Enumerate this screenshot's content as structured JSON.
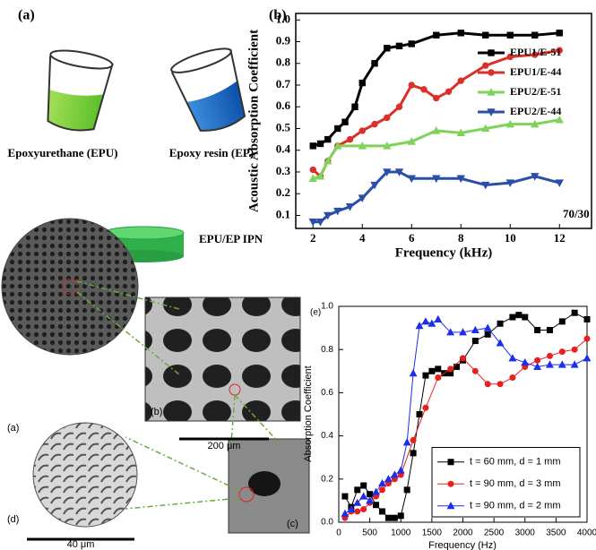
{
  "diagram": {
    "panel_label": "(a)",
    "epu_label": "Epoxyurethane (EPU)",
    "ep_label": "Epoxy resin (EP)",
    "ipn_label": "EPU/EP IPN",
    "sem": {
      "label_a": "(a)",
      "label_b": "(b)",
      "label_c": "(c)",
      "label_d": "(d)",
      "scale_200": "200 μm",
      "scale_40": "40 μm"
    }
  },
  "chart_data": [
    {
      "type": "line",
      "title": "(b)",
      "xlabel": "Frequency (kHz)",
      "ylabel": "Acoustic Absorption Coefficient",
      "annotation": "70/30",
      "xlim": [
        1.3,
        13.3
      ],
      "ylim": [
        0.04,
        1.03
      ],
      "xticks": [
        2,
        4,
        6,
        8,
        10,
        12
      ],
      "yticks": [
        0.1,
        0.2,
        0.3,
        0.4,
        0.5,
        0.6,
        0.7,
        0.8,
        0.9,
        {
          "value": 1,
          "label": "1.0"
        }
      ],
      "legend": "upper right",
      "legend_frame": false,
      "series": [
        {
          "name": "EPU1/E-51",
          "color": "#000000",
          "marker": "square",
          "x": [
            2.0,
            2.3,
            2.6,
            3.0,
            3.3,
            3.7,
            4.0,
            4.5,
            5.0,
            5.5,
            6.0,
            7.0,
            8.0,
            9.0,
            10.0,
            11.0,
            12.0
          ],
          "values": [
            0.42,
            0.43,
            0.45,
            0.5,
            0.53,
            0.6,
            0.71,
            0.8,
            0.87,
            0.88,
            0.89,
            0.93,
            0.94,
            0.93,
            0.93,
            0.93,
            0.94
          ]
        },
        {
          "name": "EPU1/E-44",
          "color": "#d9302a",
          "marker": "circle",
          "x": [
            2.0,
            2.3,
            2.6,
            3.0,
            3.5,
            4.0,
            4.5,
            5.0,
            5.5,
            6.0,
            6.5,
            7.0,
            7.5,
            8.0,
            9.0,
            10.0,
            11.0,
            12.0
          ],
          "values": [
            0.31,
            0.28,
            0.35,
            0.42,
            0.45,
            0.49,
            0.52,
            0.55,
            0.6,
            0.7,
            0.68,
            0.64,
            0.67,
            0.72,
            0.79,
            0.83,
            0.84,
            0.86
          ]
        },
        {
          "name": "EPU2/E-51",
          "color": "#7fd35a",
          "marker": "triangle-up",
          "x": [
            2.0,
            2.3,
            2.6,
            3.0,
            4.0,
            5.0,
            6.0,
            7.0,
            8.0,
            9.0,
            10.0,
            11.0,
            12.0
          ],
          "values": [
            0.27,
            0.28,
            0.35,
            0.42,
            0.42,
            0.42,
            0.44,
            0.49,
            0.48,
            0.5,
            0.52,
            0.52,
            0.54
          ]
        },
        {
          "name": "EPU2/E-44",
          "color": "#2b4ea8",
          "marker": "triangle-down",
          "x": [
            2.0,
            2.3,
            2.6,
            3.0,
            3.5,
            4.0,
            4.5,
            5.0,
            5.5,
            6.0,
            7.0,
            8.0,
            9.0,
            10.0,
            11.0,
            12.0
          ],
          "values": [
            0.07,
            0.07,
            0.1,
            0.12,
            0.14,
            0.18,
            0.24,
            0.3,
            0.3,
            0.27,
            0.27,
            0.27,
            0.24,
            0.25,
            0.28,
            0.25
          ]
        }
      ]
    },
    {
      "type": "line",
      "title": "(e)",
      "xlabel": "Frequency (Hz)",
      "ylabel": "Absorption Coefficient",
      "xlim": [
        0,
        4000
      ],
      "ylim": [
        0,
        1
      ],
      "xticks": [
        0,
        500,
        1000,
        1500,
        2000,
        2500,
        3000,
        3500,
        4000
      ],
      "yticks": [
        {
          "value": 0,
          "label": "0.0"
        },
        0.2,
        0.4,
        0.6,
        0.8,
        {
          "value": 1,
          "label": "1.0"
        }
      ],
      "legend": "lower right",
      "legend_frame": true,
      "series": [
        {
          "name": "t = 60 mm, d = 1 mm",
          "color": "#000000",
          "marker": "square",
          "x": [
            100,
            200,
            300,
            400,
            500,
            600,
            700,
            800,
            900,
            1000,
            1100,
            1200,
            1300,
            1400,
            1500,
            1600,
            1700,
            1800,
            1900,
            2000,
            2200,
            2400,
            2600,
            2800,
            2900,
            3000,
            3200,
            3400,
            3600,
            3800,
            4000
          ],
          "values": [
            0.12,
            0.07,
            0.15,
            0.17,
            0.13,
            0.08,
            0.05,
            0.02,
            0.02,
            0.03,
            0.15,
            0.32,
            0.5,
            0.68,
            0.7,
            0.71,
            0.69,
            0.69,
            0.72,
            0.75,
            0.84,
            0.87,
            0.92,
            0.95,
            0.96,
            0.95,
            0.89,
            0.89,
            0.93,
            0.97,
            0.94
          ]
        },
        {
          "name": "t = 90 mm, d = 3 mm",
          "color": "#e8201c",
          "marker": "circle",
          "x": [
            100,
            200,
            300,
            400,
            500,
            600,
            700,
            800,
            900,
            1000,
            1200,
            1400,
            1600,
            1800,
            2000,
            2200,
            2400,
            2600,
            2800,
            3000,
            3200,
            3400,
            3600,
            3800,
            4000
          ],
          "values": [
            0.02,
            0.05,
            0.05,
            0.06,
            0.09,
            0.12,
            0.15,
            0.18,
            0.2,
            0.22,
            0.38,
            0.53,
            0.67,
            0.71,
            0.76,
            0.7,
            0.64,
            0.64,
            0.67,
            0.72,
            0.75,
            0.77,
            0.79,
            0.8,
            0.85
          ]
        },
        {
          "name": "t = 90 mm, d = 2 mm",
          "color": "#1c2ee8",
          "marker": "triangle-up",
          "x": [
            100,
            200,
            300,
            400,
            500,
            600,
            700,
            800,
            900,
            1000,
            1100,
            1200,
            1300,
            1400,
            1500,
            1600,
            1800,
            2000,
            2200,
            2400,
            2600,
            2800,
            3000,
            3200,
            3400,
            3600,
            3800,
            4000
          ],
          "values": [
            0.04,
            0.06,
            0.09,
            0.12,
            0.1,
            0.14,
            0.18,
            0.2,
            0.22,
            0.24,
            0.37,
            0.69,
            0.91,
            0.93,
            0.92,
            0.94,
            0.88,
            0.88,
            0.89,
            0.9,
            0.83,
            0.76,
            0.74,
            0.72,
            0.73,
            0.73,
            0.73,
            0.76
          ]
        }
      ]
    }
  ]
}
